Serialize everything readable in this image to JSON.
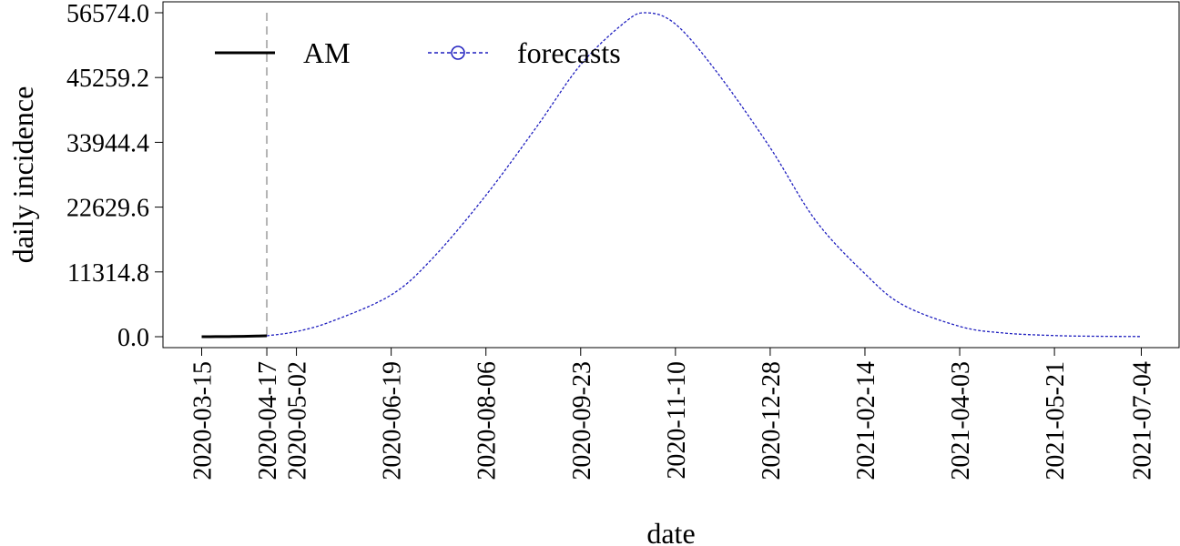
{
  "chart_data": {
    "type": "line",
    "xlabel": "date",
    "ylabel": "daily incidence",
    "x_ticks": [
      "2020-03-15",
      "2020-04-17",
      "2020-05-02",
      "2020-06-19",
      "2020-08-06",
      "2020-09-23",
      "2020-11-10",
      "2020-12-28",
      "2021-02-14",
      "2021-04-03",
      "2021-05-21",
      "2021-07-04"
    ],
    "y_ticks": [
      "0.0",
      "11314.8",
      "22629.6",
      "33944.4",
      "45259.2",
      "56574.0"
    ],
    "xlim": [
      "2020-03-15",
      "2021-07-04"
    ],
    "ylim": [
      0,
      56574.0
    ],
    "forecast_start": "2020-04-17",
    "grid": false,
    "legend": {
      "placement": "top-left",
      "entries": [
        "AM",
        "forecasts"
      ]
    },
    "series": [
      {
        "name": "AM",
        "color": "#000000",
        "style": "solid",
        "x": [
          "2020-03-15",
          "2020-03-22",
          "2020-03-29",
          "2020-04-05",
          "2020-04-12",
          "2020-04-17"
        ],
        "y": [
          2,
          10,
          25,
          60,
          110,
          160
        ]
      },
      {
        "name": "forecasts",
        "color": "#1f1fbf",
        "style": "dashed",
        "marker": "open-circle",
        "x": [
          "2020-04-17",
          "2020-05-02",
          "2020-05-20",
          "2020-06-19",
          "2020-07-10",
          "2020-08-06",
          "2020-09-01",
          "2020-09-23",
          "2020-10-15",
          "2020-10-26",
          "2020-11-10",
          "2020-12-01",
          "2020-12-28",
          "2021-01-20",
          "2021-02-14",
          "2021-03-05",
          "2021-04-03",
          "2021-04-25",
          "2021-05-21",
          "2021-06-10",
          "2021-07-04"
        ],
        "y": [
          160,
          900,
          2700,
          7300,
          13700,
          24700,
          36800,
          47500,
          54800,
          56574,
          54600,
          46200,
          33000,
          20300,
          11000,
          5600,
          1800,
          650,
          200,
          80,
          30
        ]
      }
    ]
  }
}
